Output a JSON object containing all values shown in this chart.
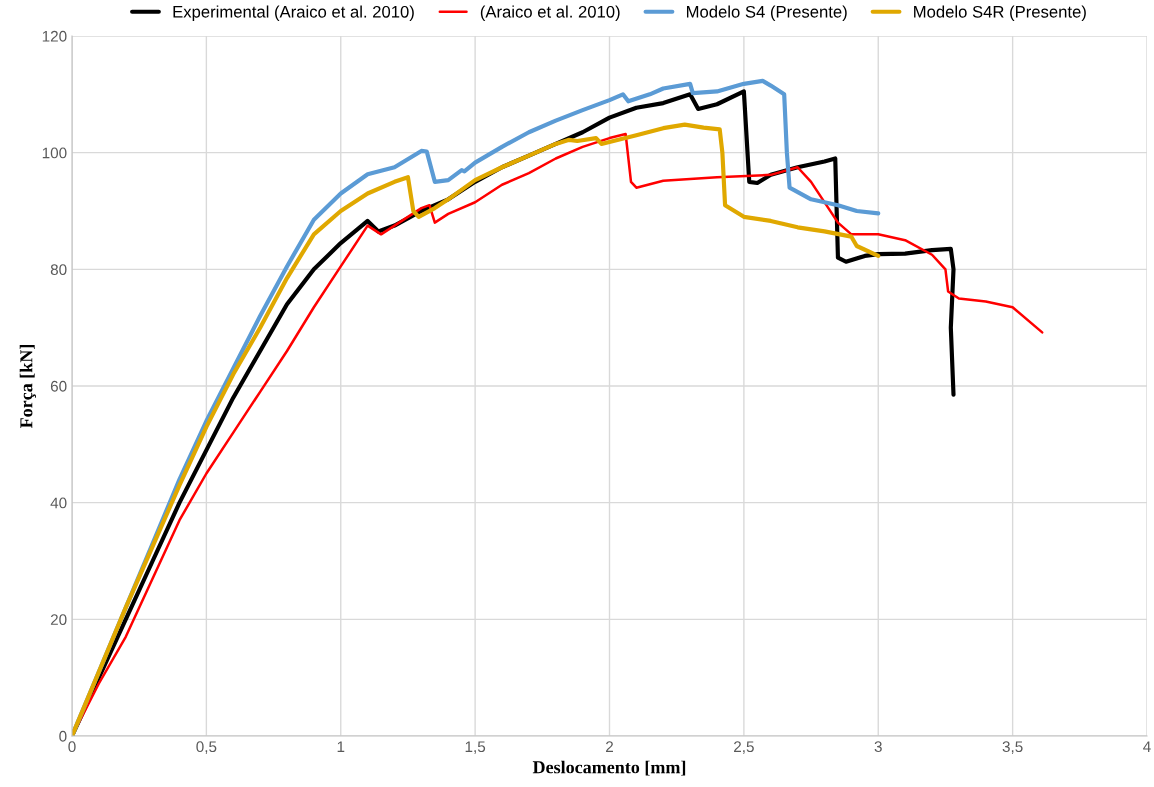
{
  "chart_data": {
    "type": "line",
    "xlabel": "Deslocamento [mm]",
    "ylabel": "Força [kN]",
    "xlim": [
      0,
      4
    ],
    "ylim": [
      0,
      120
    ],
    "xticks": [
      0,
      {
        "value": 0.5,
        "label": "0,5"
      },
      1,
      {
        "value": 1.5,
        "label": "1,5"
      },
      2,
      {
        "value": 2.5,
        "label": "2,5"
      },
      3,
      {
        "value": 3.5,
        "label": "3,5"
      },
      4
    ],
    "yticks": [
      0,
      20,
      40,
      60,
      80,
      100,
      120
    ],
    "grid": true,
    "legend": "top",
    "line_style": "solid",
    "marker": "none",
    "series": [
      {
        "name": "Experimental (Araico et al. 2010)",
        "color": "#000000",
        "x": [
          0,
          0.1,
          0.2,
          0.3,
          0.4,
          0.5,
          0.6,
          0.7,
          0.8,
          0.9,
          1.0,
          1.1,
          1.14,
          1.2,
          1.3,
          1.4,
          1.5,
          1.6,
          1.7,
          1.8,
          1.9,
          2.0,
          2.1,
          2.2,
          2.3,
          2.33,
          2.4,
          2.5,
          2.52,
          2.55,
          2.6,
          2.7,
          2.8,
          2.84,
          2.85,
          2.88,
          2.95,
          3.0,
          3.1,
          3.2,
          3.27,
          3.28,
          3.27,
          3.28
        ],
        "values": [
          0,
          10,
          20,
          30,
          40,
          49,
          58,
          66,
          74,
          80,
          84.5,
          88.3,
          86.5,
          87.5,
          90,
          92,
          95,
          97.5,
          99.5,
          101.5,
          103.5,
          106,
          107.7,
          108.5,
          110,
          107.5,
          108.3,
          110.5,
          95,
          94.8,
          96.2,
          97.5,
          98.5,
          99,
          82,
          81.3,
          82.3,
          82.6,
          82.7,
          83.3,
          83.5,
          80,
          70,
          58.5
        ]
      },
      {
        "name": "(Araico et al. 2010)",
        "color": "#ff0000",
        "x": [
          0,
          0.1,
          0.2,
          0.3,
          0.4,
          0.5,
          0.6,
          0.7,
          0.8,
          0.9,
          1.0,
          1.1,
          1.15,
          1.2,
          1.3,
          1.33,
          1.35,
          1.4,
          1.5,
          1.6,
          1.7,
          1.8,
          1.9,
          2.0,
          2.06,
          2.08,
          2.1,
          2.2,
          2.4,
          2.6,
          2.7,
          2.75,
          2.85,
          2.9,
          3.0,
          3.1,
          3.2,
          3.25,
          3.26,
          3.3,
          3.4,
          3.5,
          3.61
        ],
        "values": [
          0,
          9,
          17,
          27,
          37,
          45,
          52,
          59,
          66,
          73.5,
          80.5,
          87.5,
          86,
          87.5,
          90.5,
          91,
          88,
          89.5,
          91.5,
          94.5,
          96.5,
          99,
          101,
          102.5,
          103.2,
          95,
          94,
          95.2,
          95.8,
          96.2,
          97.5,
          95,
          88,
          86,
          86,
          85,
          82.5,
          80,
          76.2,
          75,
          74.5,
          73.5,
          69.2
        ]
      },
      {
        "name": "Modelo S4 (Presente)",
        "color": "#5b9bd5",
        "x": [
          0,
          0.1,
          0.2,
          0.3,
          0.4,
          0.5,
          0.6,
          0.7,
          0.8,
          0.9,
          1.0,
          1.1,
          1.2,
          1.3,
          1.32,
          1.35,
          1.4,
          1.45,
          1.46,
          1.5,
          1.6,
          1.7,
          1.8,
          1.9,
          2.0,
          2.05,
          2.07,
          2.15,
          2.2,
          2.3,
          2.31,
          2.4,
          2.5,
          2.57,
          2.6,
          2.65,
          2.66,
          2.67,
          2.75,
          2.85,
          2.92,
          3.0
        ],
        "values": [
          0,
          11,
          22,
          33,
          44,
          54,
          63,
          72,
          80.5,
          88.5,
          93,
          96.3,
          97.5,
          100.3,
          100.2,
          95,
          95.3,
          97,
          96.8,
          98.3,
          101,
          103.5,
          105.5,
          107.3,
          109,
          110,
          108.8,
          110,
          111,
          111.8,
          110.2,
          110.5,
          111.8,
          112.3,
          111.5,
          110,
          100,
          94,
          92,
          91,
          90,
          89.6
        ]
      },
      {
        "name": "Modelo S4R (Presente)",
        "color": "#e0a800",
        "x": [
          0,
          0.1,
          0.2,
          0.3,
          0.4,
          0.5,
          0.6,
          0.7,
          0.8,
          0.9,
          1.0,
          1.1,
          1.2,
          1.25,
          1.27,
          1.29,
          1.35,
          1.4,
          1.5,
          1.6,
          1.7,
          1.8,
          1.85,
          1.88,
          1.95,
          1.97,
          2.1,
          2.2,
          2.28,
          2.35,
          2.41,
          2.42,
          2.43,
          2.5,
          2.6,
          2.7,
          2.8,
          2.9,
          2.92,
          3.0
        ],
        "values": [
          0,
          11,
          22,
          32.5,
          43,
          53,
          62,
          70,
          78.5,
          86,
          90,
          93,
          95,
          95.8,
          90,
          89,
          90.5,
          92,
          95.3,
          97.5,
          99.5,
          101.5,
          102.2,
          102,
          102.5,
          101.5,
          103,
          104.2,
          104.8,
          104.3,
          104,
          100,
          91,
          89,
          88.3,
          87.2,
          86.5,
          85.6,
          84,
          82.3
        ]
      }
    ]
  }
}
